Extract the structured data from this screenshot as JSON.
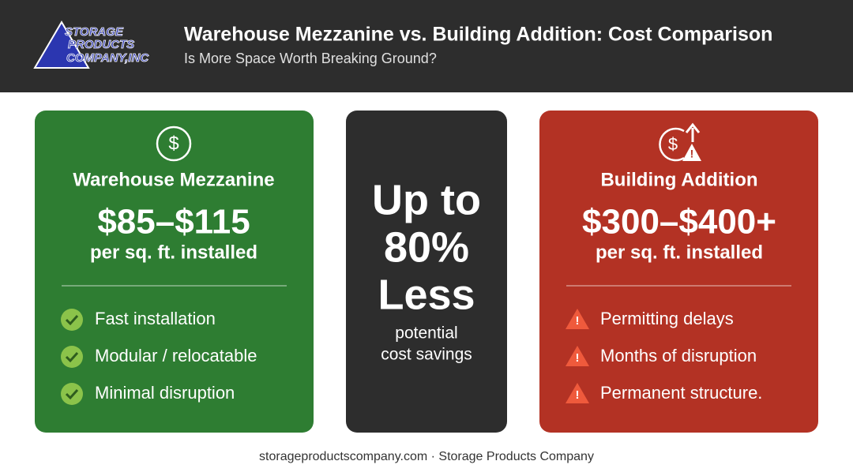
{
  "header": {
    "logo": [
      "STORAGE",
      "PRODUCTS",
      "COMPANY,INC"
    ],
    "title": "Warehouse Mezzanine vs. Building Addition: Cost Comparison",
    "subtitle": "Is More Space Worth Breaking Ground?"
  },
  "left_card": {
    "title": "Warehouse Mezzanine",
    "price": "$85–$115",
    "unit": "per sq. ft. installed",
    "items": [
      "Fast installation",
      "Modular / relocatable",
      "Minimal disruption"
    ]
  },
  "center_card": {
    "headline": [
      "Up to",
      "80%",
      "Less"
    ],
    "caption": [
      "potential",
      "cost savings"
    ]
  },
  "right_card": {
    "title": "Building Addition",
    "price": "$300–$400+",
    "unit": "per sq. ft. installed",
    "items": [
      "Permitting delays",
      "Months of disruption",
      "Permanent structure."
    ]
  },
  "footer": "storageproductscompany.com · Storage Products Company"
}
